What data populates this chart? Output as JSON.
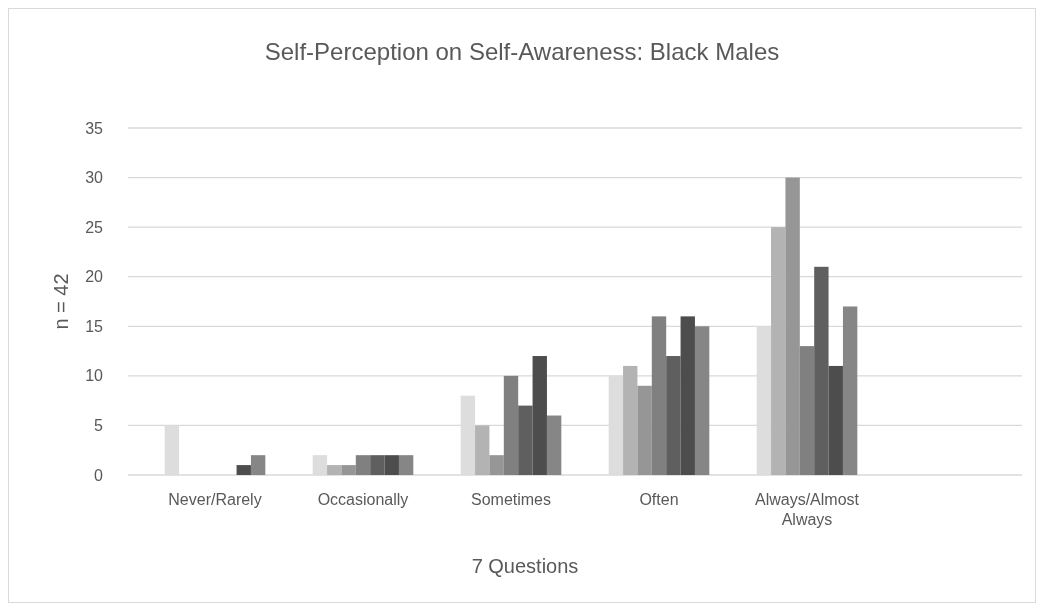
{
  "chart_data": {
    "type": "bar",
    "title": "Self-Perception on Self-Awareness: Black Males",
    "xlabel": "7 Questions",
    "ylabel": "n = 42",
    "categories": [
      "Never/Rarely",
      "Occasionally",
      "Sometimes",
      "Often",
      "Always/Almost Always",
      null
    ],
    "series": [
      {
        "color": "#dddddd",
        "values": [
          5,
          2,
          8,
          10,
          15,
          null
        ]
      },
      {
        "color": "#b3b3b3",
        "values": [
          0,
          1,
          5,
          11,
          25,
          null
        ]
      },
      {
        "color": "#969696",
        "values": [
          0,
          1,
          2,
          9,
          30,
          null
        ]
      },
      {
        "color": "#808080",
        "values": [
          0,
          2,
          10,
          16,
          13,
          null
        ]
      },
      {
        "color": "#5f5f5f",
        "values": [
          0,
          2,
          7,
          12,
          21,
          null
        ]
      },
      {
        "color": "#4d4d4d",
        "values": [
          1,
          2,
          12,
          16,
          11,
          null
        ]
      },
      {
        "color": "#868686",
        "values": [
          2,
          2,
          6,
          15,
          17,
          null
        ]
      }
    ],
    "ylim": [
      0,
      35
    ],
    "yticks": [
      0,
      5,
      10,
      15,
      20,
      25,
      30,
      35
    ],
    "grid": "y"
  }
}
